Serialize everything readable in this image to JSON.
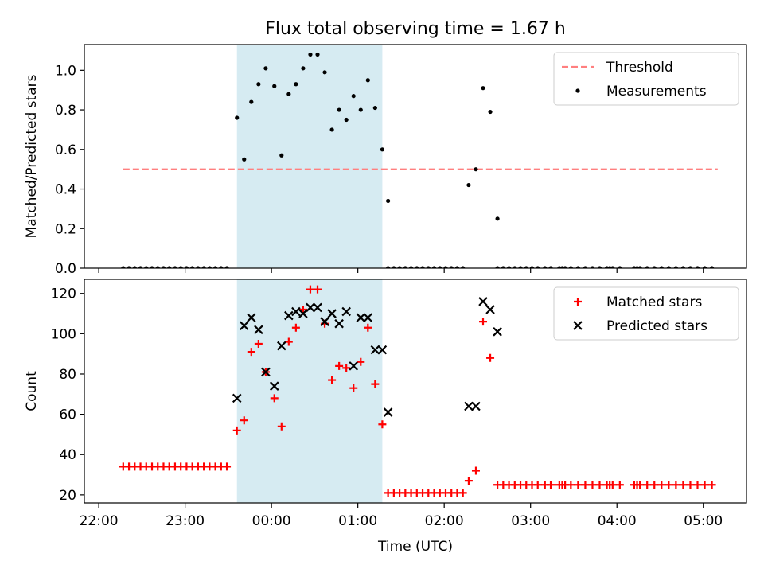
{
  "title": "Flux total observing time = 1.67 h",
  "chart_data": [
    {
      "type": "scatter",
      "ylabel": "Matched/Predicted stars",
      "xlabel": "",
      "xlim": [
        "21:50",
        "05:30"
      ],
      "ylim": [
        0,
        1.13
      ],
      "yticks": [
        0.0,
        0.2,
        0.4,
        0.6,
        0.8,
        1.0
      ],
      "yticklabels": [
        "0.0",
        "0.2",
        "0.4",
        "0.6",
        "0.8",
        "1.0"
      ],
      "shaded_interval": [
        "23:36",
        "01:17"
      ],
      "legend": {
        "location": "top-right",
        "entries": [
          "Threshold",
          "Measurements"
        ]
      },
      "series": [
        {
          "name": "Threshold",
          "kind": "dashed-line",
          "color": "#ff7f7f",
          "x": [
            "22:17",
            "05:10"
          ],
          "y": [
            0.5,
            0.5
          ]
        },
        {
          "name": "Measurements",
          "kind": "dot",
          "color": "#000000",
          "x": [
            "22:17",
            "22:21",
            "22:25",
            "22:29",
            "22:33",
            "22:37",
            "22:41",
            "22:45",
            "22:49",
            "22:53",
            "22:57",
            "23:01",
            "23:05",
            "23:09",
            "23:13",
            "23:17",
            "23:21",
            "23:25",
            "23:29",
            "23:36",
            "23:41",
            "23:46",
            "23:51",
            "23:56",
            "24:02",
            "24:07",
            "24:12",
            "24:17",
            "24:22",
            "24:27",
            "24:32",
            "24:37",
            "24:42",
            "24:47",
            "24:52",
            "24:57",
            "25:02",
            "25:07",
            "25:12",
            "25:17",
            "25:21",
            "25:21",
            "25:25",
            "25:29",
            "25:33",
            "25:37",
            "25:41",
            "25:45",
            "25:49",
            "25:53",
            "25:57",
            "26:01",
            "26:05",
            "26:09",
            "26:13",
            "26:17",
            "26:22",
            "26:27",
            "26:32",
            "26:37",
            "26:37",
            "26:41",
            "26:45",
            "26:49",
            "26:53",
            "26:57",
            "27:01",
            "27:05",
            "27:10",
            "27:14",
            "27:20",
            "27:22",
            "27:24",
            "27:28",
            "27:33",
            "27:38",
            "27:43",
            "27:48",
            "27:53",
            "27:55",
            "27:57",
            "28:02",
            "28:12",
            "28:14",
            "28:16",
            "28:21",
            "28:26",
            "28:31",
            "28:36",
            "28:41",
            "28:46",
            "28:51",
            "28:56",
            "29:01",
            "29:06"
          ],
          "y": [
            0,
            0,
            0,
            0,
            0,
            0,
            0,
            0,
            0,
            0,
            0,
            0,
            0,
            0,
            0,
            0,
            0,
            0,
            0,
            0.76,
            0.55,
            0.84,
            0.93,
            1.01,
            0.92,
            0.57,
            0.88,
            0.93,
            1.01,
            1.08,
            1.08,
            0.99,
            0.7,
            0.8,
            0.75,
            0.87,
            0.8,
            0.95,
            0.81,
            0.6,
            0.34,
            0,
            0,
            0,
            0,
            0,
            0,
            0,
            0,
            0,
            0,
            0,
            0,
            0,
            0,
            0.42,
            0.5,
            0.91,
            0.79,
            0.25,
            0,
            0,
            0,
            0,
            0,
            0,
            0,
            0,
            0,
            0,
            0,
            0,
            0,
            0,
            0,
            0,
            0,
            0,
            0,
            0,
            0,
            0,
            0,
            0,
            0,
            0,
            0,
            0,
            0,
            0,
            0,
            0,
            0,
            0,
            0
          ]
        }
      ]
    },
    {
      "type": "scatter",
      "ylabel": "Count",
      "xlabel": "Time (UTC)",
      "xlim": [
        "21:50",
        "05:30"
      ],
      "ylim": [
        16,
        127
      ],
      "yticks": [
        20,
        40,
        60,
        80,
        100,
        120
      ],
      "yticklabels": [
        "20",
        "40",
        "60",
        "80",
        "100",
        "120"
      ],
      "xticks": [
        "22:00",
        "23:00",
        "00:00",
        "01:00",
        "02:00",
        "03:00",
        "04:00",
        "05:00"
      ],
      "shaded_interval": [
        "23:36",
        "01:17"
      ],
      "legend": {
        "location": "top-right",
        "entries": [
          "Matched stars",
          "Predicted stars"
        ]
      },
      "series": [
        {
          "name": "Matched stars",
          "kind": "plus",
          "color": "#ff0000",
          "x": [
            "22:17",
            "22:21",
            "22:25",
            "22:29",
            "22:33",
            "22:37",
            "22:41",
            "22:45",
            "22:49",
            "22:53",
            "22:57",
            "23:01",
            "23:05",
            "23:09",
            "23:13",
            "23:17",
            "23:21",
            "23:25",
            "23:29",
            "23:36",
            "23:41",
            "23:46",
            "23:51",
            "23:56",
            "24:02",
            "24:07",
            "24:12",
            "24:17",
            "24:22",
            "24:27",
            "24:32",
            "24:37",
            "24:42",
            "24:47",
            "24:52",
            "24:57",
            "25:02",
            "25:07",
            "25:12",
            "25:17",
            "25:21",
            "25:25",
            "25:29",
            "25:33",
            "25:37",
            "25:41",
            "25:45",
            "25:49",
            "25:53",
            "25:57",
            "26:01",
            "26:05",
            "26:09",
            "26:13",
            "26:17",
            "26:22",
            "26:27",
            "26:32",
            "26:37",
            "26:41",
            "26:45",
            "26:49",
            "26:53",
            "26:57",
            "27:01",
            "27:05",
            "27:10",
            "27:14",
            "27:20",
            "27:22",
            "27:24",
            "27:28",
            "27:33",
            "27:38",
            "27:43",
            "27:48",
            "27:53",
            "27:55",
            "27:57",
            "28:02",
            "28:12",
            "28:14",
            "28:16",
            "28:21",
            "28:26",
            "28:31",
            "28:36",
            "28:41",
            "28:46",
            "28:51",
            "28:56",
            "29:01",
            "29:06"
          ],
          "y": [
            34,
            34,
            34,
            34,
            34,
            34,
            34,
            34,
            34,
            34,
            34,
            34,
            34,
            34,
            34,
            34,
            34,
            34,
            34,
            52,
            57,
            91,
            95,
            81,
            68,
            54,
            96,
            103,
            112,
            122,
            122,
            105,
            77,
            84,
            83,
            73,
            86,
            103,
            75,
            55,
            21,
            21,
            21,
            21,
            21,
            21,
            21,
            21,
            21,
            21,
            21,
            21,
            21,
            21,
            27,
            32,
            106,
            88,
            25,
            25,
            25,
            25,
            25,
            25,
            25,
            25,
            25,
            25,
            25,
            25,
            25,
            25,
            25,
            25,
            25,
            25,
            25,
            25,
            25,
            25,
            25,
            25,
            25,
            25,
            25,
            25,
            25,
            25,
            25,
            25,
            25,
            25,
            25
          ]
        },
        {
          "name": "Predicted stars",
          "kind": "x",
          "color": "#000000",
          "x": [
            "23:36",
            "23:41",
            "23:46",
            "23:51",
            "23:56",
            "24:02",
            "24:07",
            "24:12",
            "24:17",
            "24:22",
            "24:27",
            "24:32",
            "24:37",
            "24:42",
            "24:47",
            "24:52",
            "24:57",
            "25:02",
            "25:07",
            "25:12",
            "25:17",
            "25:21",
            "26:17",
            "26:22",
            "26:27",
            "26:32",
            "26:37"
          ],
          "y": [
            68,
            104,
            108,
            102,
            81,
            74,
            94,
            109,
            111,
            110,
            113,
            113,
            106,
            110,
            105,
            111,
            84,
            108,
            108,
            92,
            92,
            61,
            64,
            64,
            116,
            112,
            101
          ]
        }
      ]
    }
  ]
}
